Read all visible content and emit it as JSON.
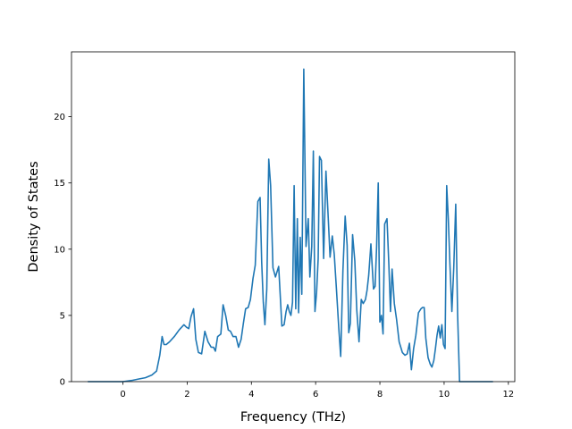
{
  "chart_data": {
    "type": "line",
    "title": "",
    "xlabel": "Frequency (THz)",
    "ylabel": "Density of States",
    "xlim": [
      -1.6,
      12.2
    ],
    "ylim": [
      0,
      24.9
    ],
    "x_ticks": [
      0,
      2,
      4,
      6,
      8,
      10,
      12
    ],
    "y_ticks": [
      0,
      5,
      10,
      15,
      20
    ],
    "grid": false,
    "legend": "none",
    "series": [
      {
        "color": "#1f77b4",
        "x": [
          -1.07,
          -0.5,
          0.0,
          0.3,
          0.5,
          0.7,
          0.9,
          1.05,
          1.15,
          1.22,
          1.28,
          1.35,
          1.45,
          1.6,
          1.75,
          1.9,
          1.98,
          2.05,
          2.12,
          2.2,
          2.27,
          2.35,
          2.45,
          2.55,
          2.65,
          2.75,
          2.82,
          2.88,
          2.95,
          3.05,
          3.12,
          3.2,
          3.28,
          3.35,
          3.43,
          3.52,
          3.6,
          3.68,
          3.75,
          3.82,
          3.9,
          3.97,
          4.05,
          4.12,
          4.2,
          4.27,
          4.32,
          4.37,
          4.42,
          4.48,
          4.54,
          4.6,
          4.67,
          4.75,
          4.85,
          4.95,
          5.02,
          5.08,
          5.13,
          5.18,
          5.23,
          5.28,
          5.33,
          5.38,
          5.43,
          5.47,
          5.52,
          5.57,
          5.63,
          5.7,
          5.77,
          5.82,
          5.88,
          5.93,
          5.98,
          6.03,
          6.08,
          6.12,
          6.18,
          6.25,
          6.32,
          6.38,
          6.45,
          6.52,
          6.58,
          6.65,
          6.72,
          6.78,
          6.85,
          6.92,
          6.98,
          7.03,
          7.08,
          7.15,
          7.22,
          7.28,
          7.35,
          7.42,
          7.48,
          7.55,
          7.6,
          7.65,
          7.72,
          7.8,
          7.85,
          7.9,
          7.95,
          8.0,
          8.05,
          8.1,
          8.15,
          8.22,
          8.28,
          8.33,
          8.38,
          8.45,
          8.52,
          8.6,
          8.7,
          8.78,
          8.85,
          8.92,
          8.98,
          9.05,
          9.12,
          9.2,
          9.28,
          9.33,
          9.38,
          9.43,
          9.5,
          9.57,
          9.62,
          9.68,
          9.73,
          9.78,
          9.83,
          9.88,
          9.93,
          9.98,
          10.03,
          10.08,
          10.13,
          10.18,
          10.24,
          10.3,
          10.36,
          10.42,
          10.48,
          11.5
        ],
        "y": [
          0,
          0,
          0,
          0.1,
          0.2,
          0.3,
          0.5,
          0.8,
          2.0,
          3.4,
          2.8,
          2.8,
          3.0,
          3.4,
          3.9,
          4.3,
          4.1,
          4.0,
          4.9,
          5.5,
          3.2,
          2.2,
          2.1,
          3.8,
          3.0,
          2.6,
          2.6,
          2.3,
          3.4,
          3.6,
          5.8,
          5.0,
          3.9,
          3.8,
          3.4,
          3.4,
          2.6,
          3.2,
          4.4,
          5.5,
          5.6,
          6.2,
          7.8,
          8.8,
          13.6,
          13.9,
          9.0,
          6.0,
          4.3,
          7.0,
          16.8,
          14.8,
          8.6,
          7.9,
          8.7,
          4.2,
          4.3,
          5.3,
          5.8,
          5.3,
          5.0,
          6.0,
          14.8,
          5.5,
          12.3,
          5.2,
          10.9,
          6.6,
          23.6,
          10.2,
          12.3,
          7.9,
          10.2,
          17.4,
          5.3,
          6.7,
          9.3,
          17.0,
          16.7,
          9.3,
          15.9,
          13.0,
          9.4,
          11.0,
          9.6,
          6.9,
          4.1,
          1.9,
          8.4,
          12.5,
          10.3,
          3.7,
          4.4,
          11.1,
          9.1,
          5.4,
          3.0,
          6.2,
          5.9,
          6.2,
          6.9,
          8.0,
          10.4,
          7.0,
          7.2,
          10.2,
          15.0,
          4.5,
          5.0,
          3.6,
          11.9,
          12.3,
          8.8,
          5.3,
          8.5,
          5.9,
          4.7,
          3.0,
          2.2,
          2.0,
          2.1,
          2.9,
          0.9,
          2.5,
          3.5,
          5.2,
          5.5,
          5.6,
          5.6,
          3.3,
          1.8,
          1.3,
          1.1,
          1.6,
          2.5,
          3.5,
          4.2,
          3.3,
          4.3,
          2.8,
          2.5,
          14.8,
          12.3,
          8.9,
          5.3,
          8.6,
          13.4,
          5.1,
          0,
          0
        ]
      }
    ]
  }
}
